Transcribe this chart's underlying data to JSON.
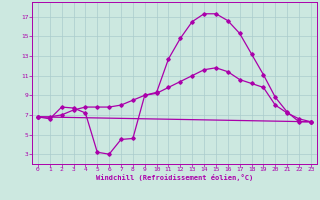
{
  "xlabel": "Windchill (Refroidissement éolien,°C)",
  "xlim": [
    -0.5,
    23.5
  ],
  "ylim": [
    2.0,
    18.5
  ],
  "xticks": [
    0,
    1,
    2,
    3,
    4,
    5,
    6,
    7,
    8,
    9,
    10,
    11,
    12,
    13,
    14,
    15,
    16,
    17,
    18,
    19,
    20,
    21,
    22,
    23
  ],
  "yticks": [
    3,
    5,
    7,
    9,
    11,
    13,
    15,
    17
  ],
  "background_color": "#cce8e0",
  "grid_color": "#aacccc",
  "line_color": "#aa00aa",
  "line1_x": [
    0,
    1,
    2,
    3,
    4,
    5,
    6,
    7,
    8,
    9,
    10,
    11,
    12,
    13,
    14,
    15,
    16,
    17,
    18,
    19,
    20,
    21,
    22,
    23
  ],
  "line1_y": [
    6.8,
    6.6,
    7.8,
    7.7,
    7.2,
    3.2,
    3.0,
    4.5,
    4.6,
    9.0,
    9.3,
    12.7,
    14.8,
    16.5,
    17.3,
    17.3,
    16.6,
    15.3,
    13.2,
    11.1,
    8.8,
    7.3,
    6.3,
    6.3
  ],
  "line2_x": [
    0,
    1,
    2,
    3,
    4,
    5,
    6,
    7,
    8,
    9,
    10,
    11,
    12,
    13,
    14,
    15,
    16,
    17,
    18,
    19,
    20,
    21,
    22,
    23
  ],
  "line2_y": [
    6.8,
    6.8,
    7.0,
    7.5,
    7.8,
    7.8,
    7.8,
    8.0,
    8.5,
    9.0,
    9.2,
    9.8,
    10.4,
    11.0,
    11.6,
    11.8,
    11.4,
    10.6,
    10.2,
    9.8,
    8.0,
    7.2,
    6.6,
    6.3
  ],
  "line3_x": [
    0,
    23
  ],
  "line3_y": [
    6.8,
    6.3
  ],
  "marker_size": 1.8,
  "line_width": 0.9
}
